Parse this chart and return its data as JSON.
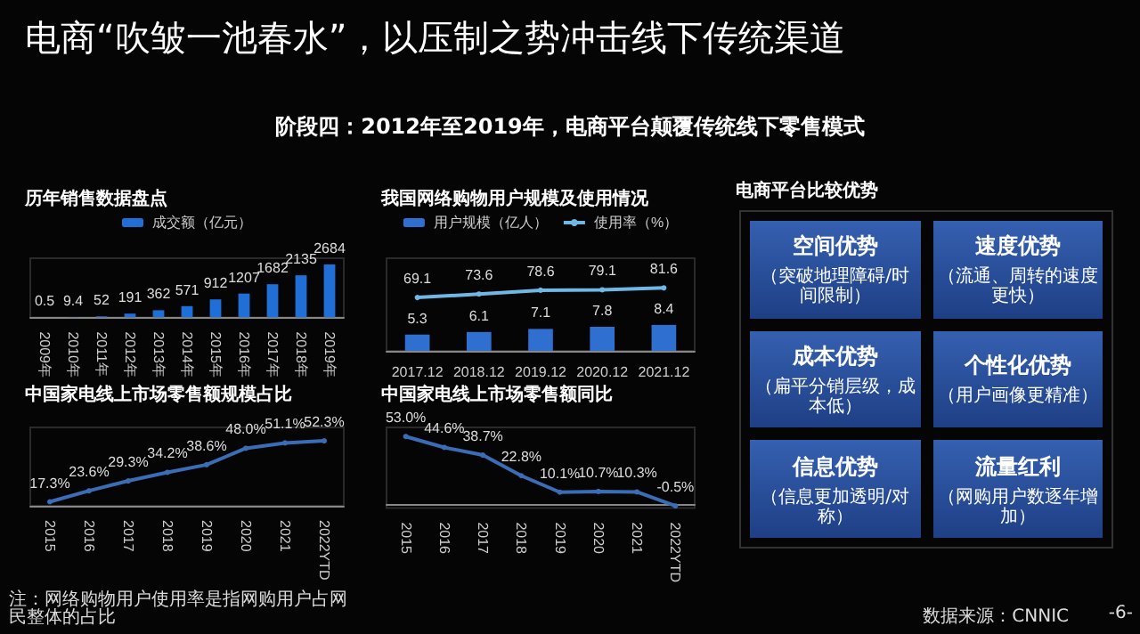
{
  "chart_data": [
    {
      "type": "other",
      "title": "电商“吹皱一池春水”，以压制之势冲击线下传统渠道",
      "subtitle": "阶段四：2012年至2019年，电商平台颠覆传统线下零售模式"
    },
    {
      "type": "bar",
      "title": "历年销售数据盘点",
      "categories": [
        "2009年",
        "2010年",
        "2011年",
        "2012年",
        "2013年",
        "2014年",
        "2015年",
        "2016年",
        "2017年",
        "2018年",
        "2019年"
      ],
      "series": [
        {
          "name": "成交额（亿元）",
          "color": "#1f6fd6",
          "values": [
            0.5,
            9.4,
            52,
            191,
            362,
            571,
            912,
            1207,
            1682,
            2135,
            2684
          ]
        }
      ],
      "ylim": [
        0,
        3000
      ],
      "tick_labels": "x",
      "data_labels": true,
      "legend": "top"
    },
    {
      "type": "bar",
      "title": "我国网络购物用户规模及使用情况",
      "categories": [
        "2017.12",
        "2018.12",
        "2019.12",
        "2020.12",
        "2021.12"
      ],
      "series": [
        {
          "name": "用户规模（亿人）",
          "color": "#2f6fd0",
          "values": [
            5.3,
            6.1,
            7.1,
            7.8,
            8.4
          ]
        },
        {
          "name": "使用率（%）",
          "type": "line",
          "axis": "y2",
          "color": "#6fb8e6",
          "values": [
            69.1,
            73.6,
            78.6,
            79.1,
            81.6
          ]
        }
      ],
      "ylim": [
        0,
        30
      ],
      "y2lim": [
        0,
        120
      ],
      "tick_labels": "x",
      "data_labels": true,
      "legend": "top",
      "marker": "circle"
    },
    {
      "type": "line",
      "title": "中国家电线上市场零售额规模占比",
      "categories": [
        "2015",
        "2016",
        "2017",
        "2018",
        "2019",
        "2020",
        "2021",
        "2022YTD"
      ],
      "series": [
        {
          "color": "#3a6db5",
          "values": [
            17.3,
            23.6,
            29.3,
            34.2,
            38.6,
            48.0,
            51.1,
            52.3
          ],
          "value_labels": [
            "17.3%",
            "23.6%",
            "29.3%",
            "34.2%",
            "38.6%",
            "48.0%",
            "51.1%",
            "52.3%"
          ]
        }
      ],
      "ylim": [
        15,
        60
      ],
      "tick_labels": "x",
      "marker": "circle",
      "annotations": [
        "注：网络购物用户使用率是指网购用户占网民整体的占比"
      ]
    },
    {
      "type": "line",
      "title": "中国家电线上市场零售额同比",
      "categories": [
        "2015",
        "2016",
        "2017",
        "2018",
        "2019",
        "2020",
        "2021",
        "2022YTD"
      ],
      "series": [
        {
          "color": "#3a6db5",
          "values": [
            53.0,
            44.6,
            38.7,
            22.8,
            10.1,
            10.7,
            10.3,
            -0.5
          ],
          "value_labels": [
            "53.0%",
            "44.6%",
            "38.7%",
            "22.8%",
            "10.1%",
            "10.7%",
            "10.3%",
            "-0.5%"
          ]
        }
      ],
      "ylim": [
        -2,
        60
      ],
      "tick_labels": "x",
      "marker": "circle"
    },
    {
      "type": "other",
      "title": "电商平台比较优势",
      "annotations": [
        "空间优势",
        "（突破地理障碍/时间限制）",
        "速度优势",
        "（流通、周转的速度更快）",
        "成本优势",
        "（扁平分销层级，成本低）",
        "个性化优势",
        "（用户画像更精准）",
        "信息优势",
        "（信息更加透明/对称）",
        "流量红利",
        "（网购用户数逐年增加）",
        "数据来源：CNNIC",
        "-6-"
      ]
    }
  ]
}
